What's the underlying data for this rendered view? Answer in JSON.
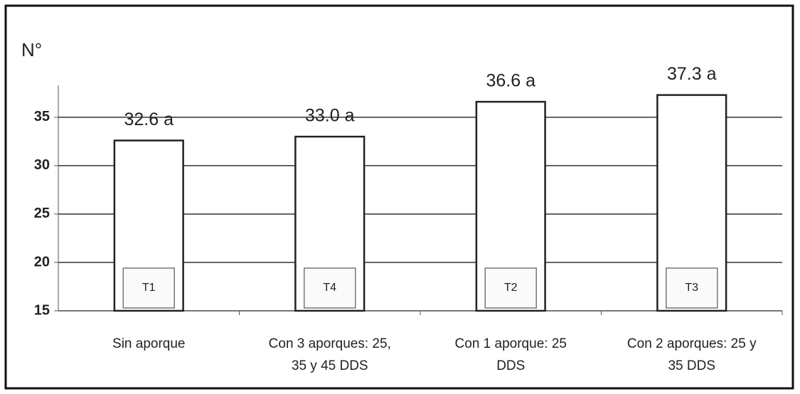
{
  "chart_data": {
    "type": "bar",
    "y_label": "N°",
    "categories": [
      [
        "Sin aporque"
      ],
      [
        "Con 3 aporques: 25,",
        "35 y 45 DDS"
      ],
      [
        "Con 1 aporque: 25",
        "DDS"
      ],
      [
        "Con 2 aporques: 25 y",
        "35 DDS"
      ]
    ],
    "values": [
      32.6,
      33.0,
      36.6,
      37.3
    ],
    "value_labels": [
      "32.6 a",
      "33.0 a",
      "36.6 a",
      "37.3 a"
    ],
    "treatments": [
      "T1",
      "T4",
      "T2",
      "T3"
    ],
    "color": "#ffffff",
    "ylim": [
      15,
      38.3
    ],
    "yticks": [
      15,
      20,
      25,
      30,
      35
    ],
    "grid": true
  }
}
